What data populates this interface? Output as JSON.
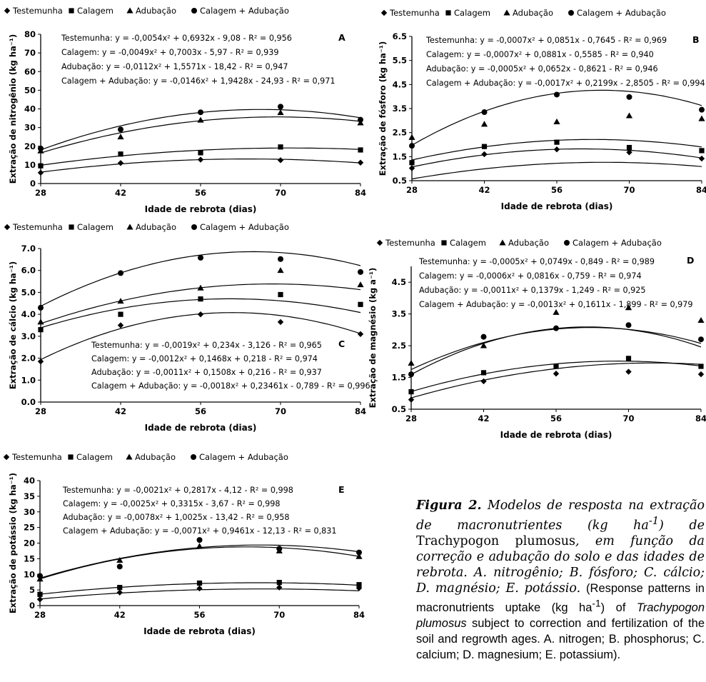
{
  "chart_data": [
    {
      "id": "A",
      "type": "scatter",
      "panel_letter": "A",
      "xlabel": "Idade de rebrota (dias)",
      "ylabel": "Extração de nitrogênio (kg ha⁻¹)",
      "x": [
        28,
        42,
        56,
        70,
        84
      ],
      "xticks": [
        "28",
        "42",
        "56",
        "70",
        "84"
      ],
      "ylim": [
        0,
        80
      ],
      "yticks": [
        "0",
        "10",
        "20",
        "30",
        "40",
        "50",
        "60",
        "70",
        "80"
      ],
      "series": [
        {
          "name": "Testemunha",
          "marker": "diamond",
          "values": [
            5.8,
            11.0,
            12.8,
            12.5,
            11.2
          ],
          "fit": [
            -0.0054,
            0.6932,
            -9.08
          ],
          "equation": "Testemunha: y = -0,0054x² + 0,6932x - 9,08 - R² = 0,956"
        },
        {
          "name": "Calagem",
          "marker": "square",
          "values": [
            9.5,
            15.8,
            16.5,
            19.6,
            18.0
          ],
          "fit": [
            -0.0049,
            0.7003,
            -5.97
          ],
          "equation": "Calagem: y = -0,0049x² + 0,7003x -  5,97 - R² = 0,939"
        },
        {
          "name": "Adubação",
          "marker": "triangle",
          "values": [
            17.5,
            25.0,
            34.0,
            38.0,
            32.5
          ],
          "fit": [
            -0.0112,
            1.5571,
            -18.42
          ],
          "equation": "Adubação: y = -0,0112x² + 1,5571x - 18,42 - R² = 0,947"
        },
        {
          "name": "Calagem + Adubação",
          "marker": "circle",
          "values": [
            18.8,
            29.0,
            38.2,
            41.2,
            34.2
          ],
          "fit": [
            -0.0146,
            1.9428,
            -24.93
          ],
          "equation": "Calagem + Adubação: y = -0,0146x² + 1,9428x - 24,93 - R² = 0,971"
        }
      ]
    },
    {
      "id": "B",
      "type": "scatter",
      "panel_letter": "B",
      "xlabel": "Idade de rebrota (dias)",
      "ylabel": "Extração de fósforo (kg ha⁻¹)",
      "x": [
        28,
        42,
        56,
        70,
        84
      ],
      "xticks": [
        "28",
        "42",
        "56",
        "70",
        "84"
      ],
      "ylim": [
        0.5,
        6.5
      ],
      "yticks": [
        "0.5",
        "1.5",
        "2.5",
        "3.5",
        "4.5",
        "5.5",
        "6.5"
      ],
      "series": [
        {
          "name": "Testemunha",
          "marker": "diamond",
          "values": [
            1.02,
            1.6,
            1.8,
            1.68,
            1.42
          ],
          "fit": [
            -0.0007,
            0.0851,
            -0.7645
          ],
          "equation": "Testemunha: y = -0,0007x² + 0,0851x - 0,7645 - R² = 0,969"
        },
        {
          "name": "Calagem",
          "marker": "square",
          "values": [
            1.25,
            1.92,
            2.1,
            1.88,
            1.75
          ],
          "fit": [
            -0.0007,
            0.0881,
            -0.5585
          ],
          "equation": "Calagem: y = -0,0007x² + 0,0881x - 0,5585 - R² = 0,940"
        },
        {
          "name": "Adubação",
          "marker": "triangle",
          "values": [
            2.3,
            2.85,
            2.95,
            3.2,
            3.08
          ],
          "fit": [
            -0.0005,
            0.0652,
            -0.8621
          ],
          "equation": "Adubação: y = -0,0005x² + 0,0652x - 0,8621 - R² = 0,946"
        },
        {
          "name": "Calagem + Adubação",
          "marker": "circle",
          "values": [
            1.95,
            3.35,
            4.08,
            3.98,
            3.45
          ],
          "fit": [
            -0.0017,
            0.2199,
            -2.8505
          ],
          "equation": "Calagem + Adubação: y = -0,0017x² + 0,2199x - 2,8505 - R² = 0,994"
        }
      ]
    },
    {
      "id": "C",
      "type": "scatter",
      "panel_letter": "C",
      "xlabel": "Idade de rebrota (dias)",
      "ylabel": "Extração de cálcio (kg ha⁻¹)",
      "x": [
        28,
        42,
        56,
        70,
        84
      ],
      "xticks": [
        "28",
        "42",
        "56",
        "70",
        "84"
      ],
      "ylim": [
        0,
        7
      ],
      "yticks": [
        "0.0",
        "1.0",
        "2.0",
        "3.0",
        "4.0",
        "5.0",
        "6.0",
        "7.0"
      ],
      "series": [
        {
          "name": "Testemunha",
          "marker": "diamond",
          "values": [
            1.85,
            3.5,
            4.0,
            3.65,
            3.1
          ],
          "fit": [
            -0.0019,
            0.234,
            -3.126
          ],
          "equation": "Testemunha: y = -0,0019x² + 0,234x - 3,126 - R² = 0,965"
        },
        {
          "name": "Calagem",
          "marker": "square",
          "values": [
            3.3,
            4.0,
            4.7,
            4.9,
            4.45
          ],
          "fit": [
            -0.0012,
            0.1468,
            0.218
          ],
          "equation": "Calagem: y = -0,0012x² + 0,1468x + 0,218 - R² = 0,974"
        },
        {
          "name": "Adubação",
          "marker": "triangle",
          "values": [
            3.65,
            4.6,
            5.2,
            6.0,
            5.35
          ],
          "fit": [
            -0.0011,
            0.1508,
            0.216
          ],
          "equation": "Adubação: y = -0,0011x² + 0,1508x + 0,216 - R² = 0,937"
        },
        {
          "name": "Calagem + Adubação",
          "marker": "circle",
          "values": [
            4.3,
            5.88,
            6.58,
            6.52,
            5.93
          ],
          "fit": [
            -0.0018,
            0.23461,
            -0.789
          ],
          "equation": "Calagem + Adubação: y = -0,0018x² + 0,23461x - 0,789 - R² = 0,996"
        }
      ]
    },
    {
      "id": "D",
      "type": "scatter",
      "panel_letter": "D",
      "xlabel": "Idade de rebrota (dias)",
      "ylabel": "Extração de magnésio (kg a⁻¹)",
      "x": [
        28,
        42,
        56,
        70,
        84
      ],
      "xticks": [
        "28",
        "42",
        "56",
        "70",
        "84"
      ],
      "ylim": [
        0.5,
        5.0
      ],
      "yticks": [
        "0.5",
        "1.5",
        "2.5",
        "3.5",
        "4.5"
      ],
      "series": [
        {
          "name": "Testemunha",
          "marker": "diamond",
          "values": [
            0.8,
            1.38,
            1.62,
            1.68,
            1.6
          ],
          "fit": [
            -0.0005,
            0.0749,
            -0.849
          ],
          "equation": "Testemunha: y = -0,0005x² + 0,0749x - 0,849 - R² = 0,989"
        },
        {
          "name": "Calagem",
          "marker": "square",
          "values": [
            1.05,
            1.65,
            1.85,
            2.1,
            1.85
          ],
          "fit": [
            -0.0006,
            0.0816,
            -0.759
          ],
          "equation": "Calagem: y = -0,0006x² + 0,0816x - 0,759 - R² = 0,974"
        },
        {
          "name": "Adubação",
          "marker": "triangle",
          "values": [
            1.95,
            2.5,
            3.55,
            3.7,
            3.3
          ],
          "fit": [
            -0.0011,
            0.1379,
            -1.249
          ],
          "equation": "Adubação: y = -0,0011x² + 0,1379x - 1,249 - R² = 0,925"
        },
        {
          "name": "Calagem + Adubação",
          "marker": "circle",
          "values": [
            1.6,
            2.78,
            3.05,
            3.15,
            2.7
          ],
          "fit": [
            -0.0013,
            0.1611,
            -1.899
          ],
          "equation": "Calagem + Adubação: y = -0,0013x² + 0,1611x - 1,899 - R² = 0,979"
        }
      ]
    },
    {
      "id": "E",
      "type": "scatter",
      "panel_letter": "E",
      "xlabel": "Idade de rebrota (dias)",
      "ylabel": "Extração de potássio (kg ha⁻¹)",
      "x": [
        28,
        42,
        56,
        70,
        84
      ],
      "xticks": [
        "28",
        "42",
        "56",
        "70",
        "84"
      ],
      "ylim": [
        0,
        40
      ],
      "yticks": [
        "0",
        "5",
        "10",
        "15",
        "20",
        "25",
        "30",
        "35",
        "40"
      ],
      "series": [
        {
          "name": "Testemunha",
          "marker": "diamond",
          "values": [
            2.0,
            4.2,
            5.5,
            5.8,
            5.6
          ],
          "fit": [
            -0.0021,
            0.2817,
            -4.12
          ],
          "equation": "Testemunha: y = -0,0021x² + 0,2817x - 4,12 - R² = 0,998"
        },
        {
          "name": "Calagem",
          "marker": "square",
          "values": [
            3.6,
            5.8,
            7.2,
            7.4,
            6.7
          ],
          "fit": [
            -0.0025,
            0.3315,
            -3.67
          ],
          "equation": "Calagem: y = -0,0025x² + 0,3315x - 3,67 - R² = 0,998"
        },
        {
          "name": "Adubação",
          "marker": "triangle",
          "values": [
            8.5,
            14.5,
            19.0,
            17.5,
            15.7
          ],
          "fit": [
            -0.0078,
            1.0025,
            -13.42
          ],
          "equation": "Adubação: y = -0,0078x² + 1,0025x - 13,42 - R² = 0,958"
        },
        {
          "name": "Calagem + Adubação",
          "marker": "circle",
          "values": [
            9.5,
            12.5,
            21.0,
            18.2,
            17.0
          ],
          "fit": [
            -0.0071,
            0.9461,
            -12.13
          ],
          "equation": "Calagem + Adubação: y = -0,0071x² + 0,9461x - 12,13 - R² = 0,831"
        }
      ]
    }
  ],
  "caption": {
    "label": "Figura 2.",
    "text_before": " Modelos de resposta na extração de macronutrientes (kg ha",
    "sup": "-1",
    "text_mid": ") de ",
    "species": "Trachypogon plumosus",
    "text_after": ", em função da correção e adubação do solo e das idades de rebrota. A. nitrogênio; B. fósforo; C. cálcio; D. magnésio; E. potássio.",
    "en_before": "(Response patterns in macronutrients uptake (kg ha",
    "en_sup": "-1",
    "en_mid": ") of ",
    "en_species": "Trachypogon plumosus",
    "en_after": " subject to correction and fertilization of the soil and regrowth ages. A. nitrogen; B. phosphorus; C. calcium; D. magnesium; E. potassium)."
  }
}
